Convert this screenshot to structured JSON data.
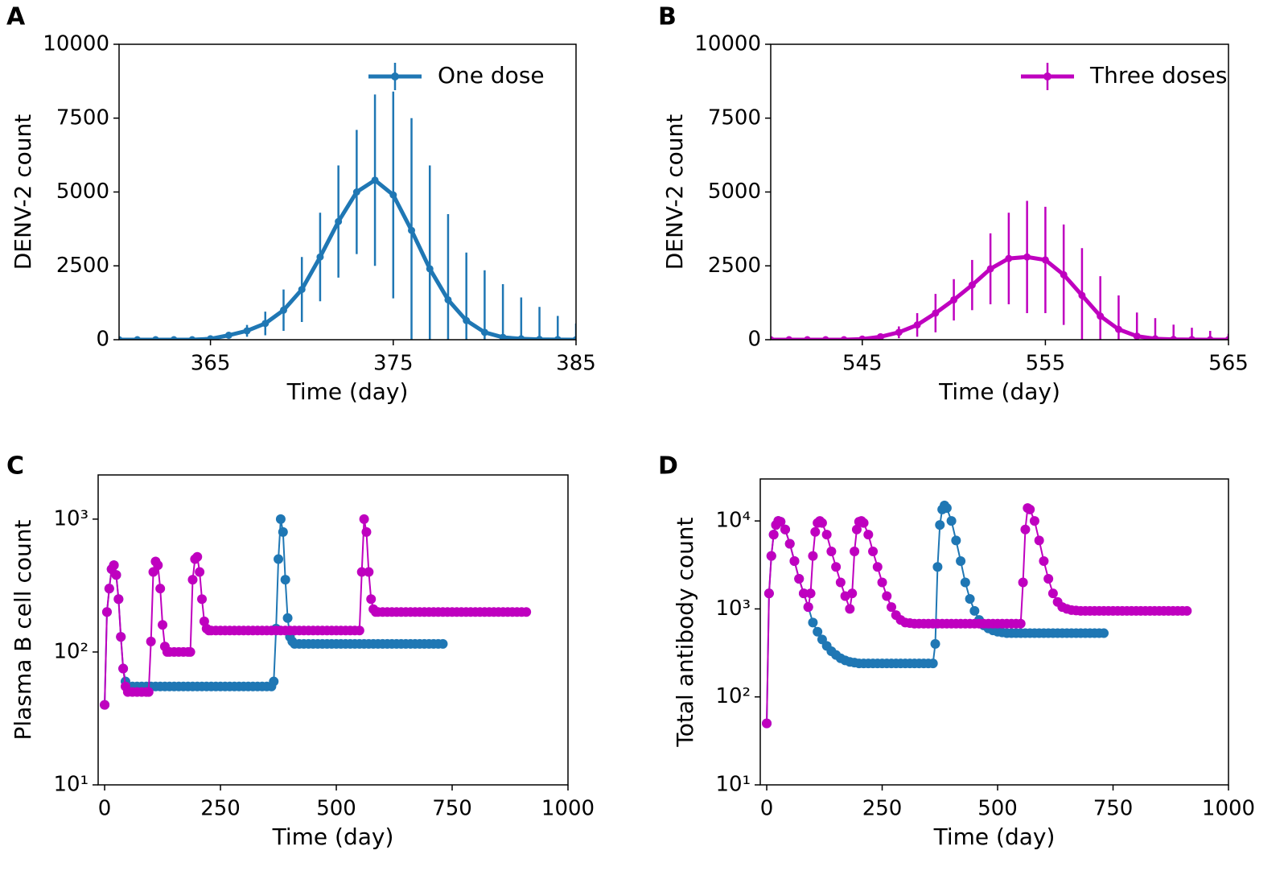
{
  "chart_data": [
    {
      "panel": "A",
      "type": "line",
      "xlabel": "Time (day)",
      "ylabel": "DENV-2 count",
      "legend": "upper right",
      "xlim": [
        360,
        385
      ],
      "xticks": [
        365,
        375,
        385
      ],
      "ylim": [
        0,
        10000
      ],
      "yticks": [
        0,
        2500,
        5000,
        7500,
        10000
      ],
      "log_y": false,
      "x": [
        360,
        361,
        362,
        363,
        364,
        365,
        366,
        367,
        368,
        369,
        370,
        371,
        372,
        373,
        374,
        375,
        376,
        377,
        378,
        379,
        380,
        381,
        382,
        383,
        384,
        385
      ],
      "series": [
        {
          "name": "One dose",
          "color": "#1f77b4",
          "values": [
            0,
            0,
            0,
            0,
            0,
            30,
            150,
            300,
            550,
            1000,
            1700,
            2800,
            4000,
            5000,
            5400,
            4900,
            3700,
            2400,
            1350,
            650,
            250,
            80,
            30,
            10,
            5,
            0
          ],
          "errors": [
            0,
            0,
            0,
            0,
            0,
            20,
            80,
            200,
            400,
            700,
            1100,
            1500,
            1900,
            2100,
            2900,
            3500,
            3800,
            3500,
            2900,
            2300,
            2100,
            1800,
            1400,
            1100,
            800,
            550
          ]
        }
      ]
    },
    {
      "panel": "B",
      "type": "line",
      "xlabel": "Time (day)",
      "ylabel": "DENV-2 count",
      "legend": "upper right",
      "xlim": [
        540,
        565
      ],
      "xticks": [
        545,
        555,
        565
      ],
      "ylim": [
        0,
        10000
      ],
      "yticks": [
        0,
        2500,
        5000,
        7500,
        10000
      ],
      "log_y": false,
      "x": [
        540,
        541,
        542,
        543,
        544,
        545,
        546,
        547,
        548,
        549,
        550,
        551,
        552,
        553,
        554,
        555,
        556,
        557,
        558,
        559,
        560,
        561,
        562,
        563,
        564,
        565
      ],
      "series": [
        {
          "name": "Three doses",
          "color": "#bf00bf",
          "values": [
            0,
            0,
            0,
            0,
            0,
            20,
            100,
            250,
            500,
            900,
            1350,
            1850,
            2400,
            2750,
            2800,
            2700,
            2200,
            1500,
            800,
            350,
            120,
            30,
            10,
            5,
            0,
            0
          ],
          "errors": [
            0,
            0,
            0,
            0,
            0,
            20,
            80,
            200,
            400,
            650,
            700,
            850,
            1200,
            1550,
            1900,
            1800,
            1700,
            1600,
            1350,
            1150,
            800,
            700,
            500,
            400,
            300,
            200
          ]
        }
      ]
    },
    {
      "panel": "C",
      "type": "line",
      "xlabel": "Time (day)",
      "ylabel": "Plasma B cell count",
      "xlim": [
        -14,
        1000
      ],
      "xticks": [
        0,
        250,
        500,
        750,
        1000
      ],
      "ylim": [
        10,
        2150
      ],
      "log_y": true,
      "yticks": [
        {
          "value": 10,
          "label": "10¹"
        },
        {
          "value": 100,
          "label": "10²"
        },
        {
          "value": 1000,
          "label": "10³"
        }
      ],
      "series": [
        {
          "color": "#1f77b4",
          "x": [
            0,
            5,
            10,
            15,
            20,
            25,
            30,
            35,
            40,
            45,
            50,
            60,
            70,
            80,
            90,
            100,
            110,
            120,
            130,
            140,
            150,
            160,
            170,
            180,
            190,
            200,
            210,
            220,
            230,
            240,
            250,
            260,
            270,
            280,
            290,
            300,
            310,
            320,
            330,
            340,
            350,
            360,
            365,
            370,
            375,
            380,
            385,
            390,
            395,
            400,
            405,
            410,
            420,
            430,
            440,
            450,
            460,
            470,
            480,
            490,
            500,
            510,
            520,
            530,
            540,
            550,
            560,
            570,
            580,
            590,
            600,
            610,
            620,
            630,
            640,
            650,
            660,
            670,
            680,
            690,
            700,
            710,
            720,
            730
          ],
          "values": [
            40,
            200,
            300,
            420,
            450,
            380,
            250,
            130,
            75,
            60,
            55,
            55,
            55,
            55,
            55,
            55,
            55,
            55,
            55,
            55,
            55,
            55,
            55,
            55,
            55,
            55,
            55,
            55,
            55,
            55,
            55,
            55,
            55,
            55,
            55,
            55,
            55,
            55,
            55,
            55,
            55,
            55,
            60,
            150,
            500,
            1000,
            800,
            350,
            180,
            130,
            120,
            115,
            115,
            115,
            115,
            115,
            115,
            115,
            115,
            115,
            115,
            115,
            115,
            115,
            115,
            115,
            115,
            115,
            115,
            115,
            115,
            115,
            115,
            115,
            115,
            115,
            115,
            115,
            115,
            115,
            115,
            115,
            115,
            115
          ]
        },
        {
          "color": "#bf00bf",
          "x": [
            0,
            5,
            10,
            15,
            20,
            25,
            30,
            35,
            40,
            45,
            50,
            60,
            70,
            80,
            90,
            95,
            100,
            105,
            110,
            115,
            120,
            125,
            130,
            135,
            140,
            150,
            160,
            170,
            180,
            185,
            190,
            195,
            200,
            205,
            210,
            215,
            220,
            225,
            230,
            240,
            250,
            260,
            270,
            280,
            290,
            300,
            310,
            320,
            330,
            340,
            350,
            360,
            370,
            380,
            390,
            400,
            410,
            420,
            430,
            440,
            450,
            460,
            470,
            480,
            490,
            500,
            510,
            520,
            530,
            540,
            550,
            555,
            560,
            565,
            570,
            575,
            580,
            585,
            590,
            600,
            610,
            620,
            630,
            640,
            650,
            660,
            670,
            680,
            690,
            700,
            710,
            720,
            730,
            740,
            750,
            760,
            770,
            780,
            790,
            800,
            810,
            820,
            830,
            840,
            850,
            860,
            870,
            880,
            890,
            900,
            910
          ],
          "values": [
            40,
            200,
            300,
            420,
            450,
            380,
            250,
            130,
            75,
            55,
            50,
            50,
            50,
            50,
            50,
            50,
            120,
            400,
            480,
            450,
            300,
            160,
            110,
            100,
            100,
            100,
            100,
            100,
            100,
            100,
            350,
            500,
            520,
            400,
            250,
            170,
            150,
            145,
            145,
            145,
            145,
            145,
            145,
            145,
            145,
            145,
            145,
            145,
            145,
            145,
            145,
            145,
            145,
            145,
            145,
            145,
            145,
            145,
            145,
            145,
            145,
            145,
            145,
            145,
            145,
            145,
            145,
            145,
            145,
            145,
            145,
            400,
            1000,
            800,
            400,
            250,
            210,
            200,
            200,
            200,
            200,
            200,
            200,
            200,
            200,
            200,
            200,
            200,
            200,
            200,
            200,
            200,
            200,
            200,
            200,
            200,
            200,
            200,
            200,
            200,
            200,
            200,
            200,
            200,
            200,
            200,
            200,
            200,
            200,
            200,
            200
          ]
        }
      ]
    },
    {
      "panel": "D",
      "type": "line",
      "xlabel": "Time (day)",
      "ylabel": "Total antibody count",
      "xlim": [
        -14,
        1000
      ],
      "xticks": [
        0,
        250,
        500,
        750,
        1000
      ],
      "ylim": [
        10,
        30000
      ],
      "log_y": true,
      "yticks": [
        {
          "value": 10,
          "label": "10¹"
        },
        {
          "value": 100,
          "label": "10²"
        },
        {
          "value": 1000,
          "label": "10³"
        },
        {
          "value": 10000,
          "label": "10⁴"
        }
      ],
      "series": [
        {
          "color": "#1f77b4",
          "x": [
            0,
            5,
            10,
            15,
            20,
            25,
            30,
            40,
            50,
            60,
            70,
            80,
            90,
            100,
            110,
            120,
            130,
            140,
            150,
            160,
            170,
            180,
            190,
            200,
            210,
            220,
            230,
            240,
            250,
            260,
            270,
            280,
            290,
            300,
            310,
            320,
            330,
            340,
            350,
            360,
            365,
            370,
            375,
            380,
            385,
            390,
            400,
            410,
            420,
            430,
            440,
            450,
            460,
            470,
            480,
            490,
            500,
            510,
            520,
            530,
            540,
            550,
            560,
            570,
            580,
            590,
            600,
            610,
            620,
            630,
            640,
            650,
            660,
            670,
            680,
            690,
            700,
            710,
            720,
            730
          ],
          "values": [
            50,
            1500,
            4000,
            7000,
            9000,
            10000,
            9800,
            8000,
            5500,
            3500,
            2200,
            1500,
            1050,
            700,
            550,
            450,
            380,
            330,
            300,
            275,
            260,
            250,
            245,
            240,
            240,
            240,
            240,
            240,
            240,
            240,
            240,
            240,
            240,
            240,
            240,
            240,
            240,
            240,
            240,
            240,
            400,
            3000,
            9000,
            13500,
            15000,
            14000,
            10000,
            6000,
            3500,
            2000,
            1300,
            950,
            750,
            650,
            600,
            570,
            550,
            540,
            530,
            530,
            530,
            530,
            530,
            530,
            530,
            530,
            530,
            530,
            530,
            530,
            530,
            530,
            530,
            530,
            530,
            530,
            530,
            530,
            530,
            530
          ]
        },
        {
          "color": "#bf00bf",
          "x": [
            0,
            5,
            10,
            15,
            20,
            25,
            30,
            40,
            50,
            60,
            70,
            80,
            90,
            95,
            100,
            105,
            110,
            115,
            120,
            130,
            140,
            150,
            160,
            170,
            180,
            185,
            190,
            195,
            200,
            205,
            210,
            220,
            230,
            240,
            250,
            260,
            270,
            280,
            290,
            300,
            310,
            320,
            330,
            340,
            350,
            360,
            370,
            380,
            390,
            400,
            410,
            420,
            430,
            440,
            450,
            460,
            470,
            480,
            490,
            500,
            510,
            520,
            530,
            540,
            550,
            555,
            560,
            565,
            570,
            580,
            590,
            600,
            610,
            620,
            630,
            640,
            650,
            660,
            670,
            680,
            690,
            700,
            710,
            720,
            730,
            740,
            750,
            760,
            770,
            780,
            790,
            800,
            810,
            820,
            830,
            840,
            850,
            860,
            870,
            880,
            890,
            900,
            910
          ],
          "values": [
            50,
            1500,
            4000,
            7000,
            9000,
            10000,
            9800,
            8000,
            5500,
            3500,
            2200,
            1500,
            1050,
            1500,
            4000,
            7500,
            9500,
            10000,
            9500,
            7000,
            4500,
            3000,
            2000,
            1400,
            1000,
            1500,
            4500,
            8000,
            9800,
            10000,
            9500,
            7000,
            4500,
            3000,
            2000,
            1400,
            1050,
            850,
            750,
            700,
            690,
            680,
            680,
            680,
            680,
            680,
            680,
            680,
            680,
            680,
            680,
            680,
            680,
            680,
            680,
            680,
            680,
            680,
            680,
            680,
            680,
            680,
            680,
            680,
            680,
            2000,
            8000,
            14000,
            13500,
            10000,
            6000,
            3500,
            2200,
            1500,
            1200,
            1050,
            1000,
            970,
            960,
            950,
            950,
            950,
            950,
            950,
            950,
            950,
            950,
            950,
            950,
            950,
            950,
            950,
            950,
            950,
            950,
            950,
            950,
            950,
            950,
            950,
            950,
            950,
            950
          ]
        }
      ]
    }
  ]
}
